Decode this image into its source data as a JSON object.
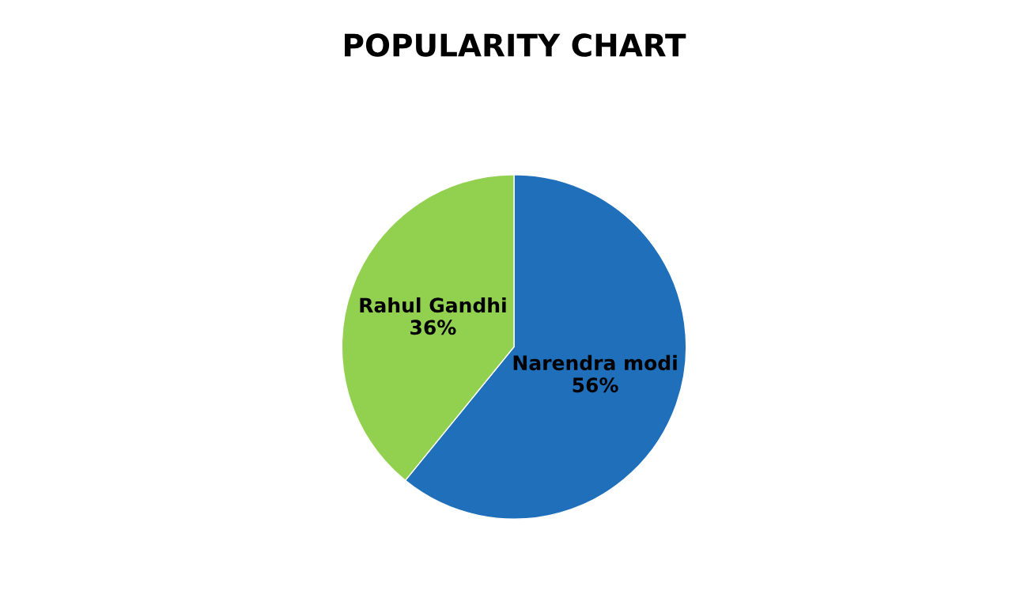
{
  "chart_data": {
    "type": "pie",
    "title": "POPULARITY CHART",
    "categories": [
      "Narendra modi",
      "Rahul Gandhi"
    ],
    "values": [
      56,
      36
    ],
    "value_labels": [
      "56%",
      "36%"
    ],
    "colors": [
      "#1f6fba",
      "#92d050"
    ]
  }
}
